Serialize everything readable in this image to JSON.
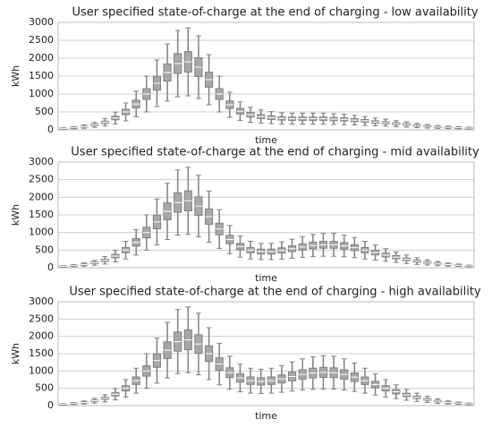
{
  "chart_data": [
    {
      "type": "box",
      "title": "User specified state-of-charge at the end of charging - low availability",
      "xlabel": "time",
      "ylabel": "kWh",
      "color": "#808080",
      "grid": true,
      "ylim": [
        0,
        3000
      ],
      "yticks": [
        0,
        500,
        1000,
        1500,
        2000,
        2500,
        3000
      ],
      "categories": [
        null,
        null,
        null,
        null,
        null,
        null,
        null,
        null,
        null,
        null,
        null,
        null,
        null,
        null,
        null,
        null,
        null,
        null,
        null,
        null,
        null,
        null,
        null,
        null,
        null,
        null,
        null,
        null,
        null,
        null,
        null,
        null,
        null,
        null,
        null,
        null,
        null,
        null,
        null,
        null
      ],
      "low": [
        20,
        30,
        45,
        70,
        105,
        165,
        250,
        360,
        500,
        650,
        800,
        925,
        950,
        875,
        700,
        500,
        350,
        260,
        210,
        185,
        170,
        160,
        155,
        155,
        155,
        155,
        150,
        145,
        135,
        125,
        110,
        100,
        85,
        75,
        60,
        50,
        40,
        35,
        30,
        25
      ],
      "q1": [
        34,
        51,
        77,
        119,
        179,
        281,
        425,
        612,
        850,
        1105,
        1360,
        1573,
        1615,
        1488,
        1190,
        850,
        595,
        442,
        357,
        315,
        289,
        272,
        264,
        264,
        264,
        264,
        255,
        247,
        230,
        213,
        187,
        170,
        145,
        128,
        102,
        85,
        68,
        60,
        51,
        43
      ],
      "median": [
        40,
        60,
        90,
        140,
        210,
        330,
        500,
        720,
        1000,
        1300,
        1600,
        1850,
        1900,
        1750,
        1400,
        1000,
        700,
        520,
        420,
        370,
        340,
        320,
        310,
        310,
        310,
        310,
        300,
        290,
        270,
        250,
        220,
        200,
        170,
        150,
        120,
        100,
        80,
        70,
        60,
        50
      ],
      "q3": [
        46,
        69,
        104,
        161,
        242,
        380,
        575,
        828,
        1150,
        1495,
        1840,
        2128,
        2185,
        2013,
        1610,
        1150,
        805,
        598,
        483,
        426,
        391,
        368,
        357,
        357,
        357,
        357,
        345,
        334,
        311,
        288,
        253,
        230,
        196,
        173,
        138,
        115,
        92,
        81,
        69,
        58
      ],
      "high": [
        60,
        90,
        135,
        210,
        315,
        495,
        750,
        1080,
        1500,
        1950,
        2400,
        2775,
        2850,
        2625,
        2100,
        1500,
        1050,
        780,
        630,
        555,
        510,
        480,
        465,
        465,
        465,
        465,
        450,
        435,
        405,
        375,
        330,
        300,
        255,
        225,
        180,
        150,
        120,
        105,
        90,
        75
      ]
    },
    {
      "type": "box",
      "title": "User specified state-of-charge at the end of charging - mid availability",
      "xlabel": "time",
      "ylabel": "kWh",
      "color": "#808080",
      "grid": true,
      "ylim": [
        0,
        3000
      ],
      "yticks": [
        0,
        500,
        1000,
        1500,
        2000,
        2500,
        3000
      ],
      "categories": [
        null,
        null,
        null,
        null,
        null,
        null,
        null,
        null,
        null,
        null,
        null,
        null,
        null,
        null,
        null,
        null,
        null,
        null,
        null,
        null,
        null,
        null,
        null,
        null,
        null,
        null,
        null,
        null,
        null,
        null,
        null,
        null,
        null,
        null,
        null,
        null,
        null,
        null,
        null,
        null
      ],
      "low": [
        20,
        30,
        45,
        70,
        105,
        165,
        250,
        360,
        500,
        650,
        800,
        925,
        950,
        875,
        725,
        550,
        400,
        300,
        250,
        230,
        230,
        245,
        270,
        295,
        315,
        325,
        325,
        310,
        285,
        250,
        215,
        180,
        150,
        120,
        95,
        75,
        60,
        45,
        35,
        25
      ],
      "q1": [
        34,
        51,
        77,
        119,
        179,
        281,
        425,
        612,
        850,
        1105,
        1360,
        1573,
        1615,
        1488,
        1233,
        935,
        680,
        510,
        425,
        391,
        391,
        417,
        459,
        502,
        536,
        553,
        553,
        527,
        485,
        425,
        366,
        306,
        255,
        204,
        162,
        128,
        102,
        77,
        60,
        43
      ],
      "median": [
        40,
        60,
        90,
        140,
        210,
        330,
        500,
        720,
        1000,
        1300,
        1600,
        1850,
        1900,
        1750,
        1450,
        1100,
        800,
        600,
        500,
        460,
        460,
        490,
        540,
        590,
        630,
        650,
        650,
        620,
        570,
        500,
        430,
        360,
        300,
        240,
        190,
        150,
        120,
        90,
        70,
        50
      ],
      "q3": [
        46,
        69,
        104,
        161,
        242,
        380,
        575,
        828,
        1150,
        1495,
        1840,
        2128,
        2185,
        2013,
        1668,
        1265,
        920,
        690,
        575,
        529,
        529,
        564,
        621,
        679,
        725,
        748,
        748,
        713,
        656,
        575,
        495,
        414,
        345,
        276,
        219,
        173,
        138,
        104,
        81,
        58
      ],
      "high": [
        60,
        90,
        135,
        210,
        315,
        495,
        750,
        1080,
        1500,
        1950,
        2400,
        2775,
        2850,
        2625,
        2175,
        1650,
        1200,
        900,
        750,
        690,
        690,
        735,
        810,
        885,
        945,
        975,
        975,
        930,
        855,
        750,
        645,
        540,
        450,
        360,
        285,
        225,
        180,
        135,
        105,
        75
      ]
    },
    {
      "type": "box",
      "title": "User specified state-of-charge at the end of charging - high availability",
      "xlabel": "time",
      "ylabel": "kWh",
      "color": "#808080",
      "grid": true,
      "ylim": [
        0,
        3000
      ],
      "yticks": [
        0,
        500,
        1000,
        1500,
        2000,
        2500,
        3000
      ],
      "categories": [
        null,
        null,
        null,
        null,
        null,
        null,
        null,
        null,
        null,
        null,
        null,
        null,
        null,
        null,
        null,
        null,
        null,
        null,
        null,
        null,
        null,
        null,
        null,
        null,
        null,
        null,
        null,
        null,
        null,
        null,
        null,
        null,
        null,
        null,
        null,
        null,
        null,
        null,
        null,
        null
      ],
      "low": [
        20,
        30,
        45,
        70,
        105,
        165,
        250,
        360,
        500,
        650,
        800,
        925,
        950,
        890,
        750,
        600,
        475,
        400,
        360,
        350,
        360,
        385,
        420,
        450,
        470,
        480,
        475,
        450,
        410,
        360,
        305,
        250,
        200,
        155,
        120,
        90,
        65,
        45,
        35,
        25
      ],
      "q1": [
        34,
        51,
        77,
        119,
        179,
        281,
        425,
        612,
        850,
        1105,
        1360,
        1573,
        1615,
        1513,
        1275,
        1020,
        808,
        680,
        612,
        595,
        612,
        655,
        714,
        765,
        799,
        816,
        808,
        765,
        697,
        612,
        519,
        425,
        340,
        264,
        204,
        153,
        111,
        77,
        60,
        43
      ],
      "median": [
        40,
        60,
        90,
        140,
        210,
        330,
        500,
        720,
        1000,
        1300,
        1600,
        1850,
        1900,
        1780,
        1500,
        1200,
        950,
        800,
        720,
        700,
        720,
        770,
        840,
        900,
        940,
        960,
        950,
        900,
        820,
        720,
        610,
        500,
        400,
        310,
        240,
        180,
        130,
        90,
        70,
        50
      ],
      "q3": [
        46,
        69,
        104,
        161,
        242,
        380,
        575,
        828,
        1150,
        1495,
        1840,
        2128,
        2185,
        2047,
        1725,
        1380,
        1093,
        920,
        828,
        805,
        828,
        886,
        966,
        1035,
        1081,
        1104,
        1093,
        1035,
        943,
        828,
        702,
        575,
        460,
        357,
        276,
        207,
        150,
        104,
        81,
        58
      ],
      "high": [
        60,
        90,
        135,
        210,
        315,
        495,
        750,
        1080,
        1500,
        1950,
        2400,
        2775,
        2850,
        2670,
        2250,
        1800,
        1425,
        1200,
        1080,
        1050,
        1080,
        1155,
        1260,
        1350,
        1410,
        1440,
        1425,
        1350,
        1230,
        1080,
        915,
        750,
        600,
        465,
        360,
        270,
        195,
        135,
        105,
        75
      ]
    }
  ]
}
